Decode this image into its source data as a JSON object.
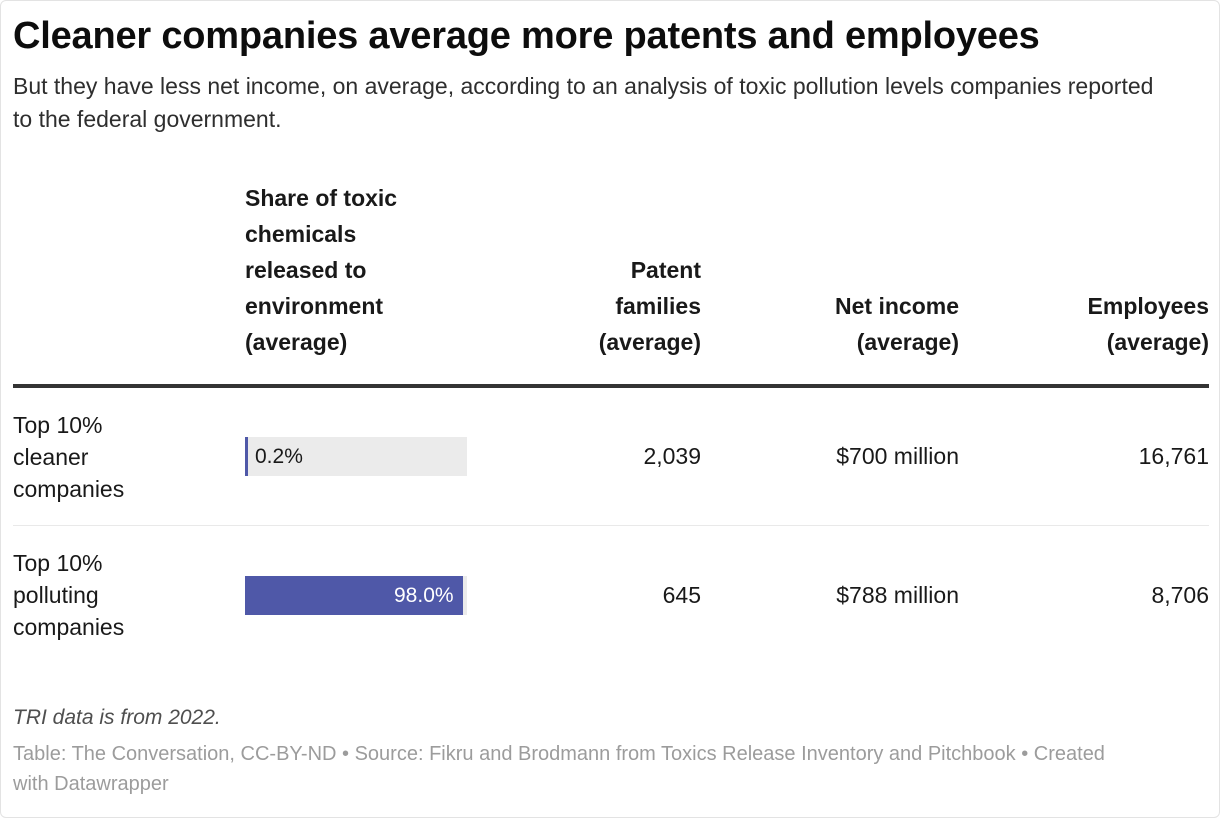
{
  "title": "Cleaner companies average more patents and employees",
  "subtitle": "But they have less net income, on average, according to an analysis of toxic pollution levels companies reported to the federal government.",
  "accent_color": "#4f58a8",
  "track_color": "#ebebeb",
  "table": {
    "columns": [
      {
        "label_lines": [
          "Share of toxic",
          "chemicals",
          "released to",
          "environment",
          "(average)"
        ],
        "align": "left"
      },
      {
        "label_lines": [
          "Patent",
          "families",
          "(average)"
        ],
        "align": "right"
      },
      {
        "label_lines": [
          "Net income",
          "(average)"
        ],
        "align": "right"
      },
      {
        "label_lines": [
          "Employees",
          "(average)"
        ],
        "align": "right"
      }
    ],
    "rows": [
      {
        "label_lines": [
          "Top 10%",
          "cleaner",
          "companies"
        ],
        "share_pct": 0.2,
        "share_label": "0.2%",
        "patents": "2,039",
        "net_income": "$700 million",
        "employees": "16,761"
      },
      {
        "label_lines": [
          "Top 10%",
          "polluting",
          "companies"
        ],
        "share_pct": 98.0,
        "share_label": "98.0%",
        "patents": "645",
        "net_income": "$788 million",
        "employees": "8,706"
      }
    ]
  },
  "footnote": "TRI data is from 2022.",
  "attribution_lines": [
    "Table: The Conversation, CC-BY-ND • Source: Fikru and Brodmann from Toxics Release Inventory and Pitchbook • Created",
    "with Datawrapper"
  ],
  "chart_data": {
    "type": "table",
    "title": "Cleaner companies average more patents and employees",
    "subtitle": "But they have less net income, on average, according to an analysis of toxic pollution levels companies reported to the federal government.",
    "columns": [
      "Share of toxic chemicals released to environment (average)",
      "Patent families (average)",
      "Net income (average)",
      "Employees (average)"
    ],
    "rows": [
      {
        "group": "Top 10% cleaner companies",
        "share_of_toxic_chemicals_released_pct": 0.2,
        "patent_families": 2039,
        "net_income_usd_millions": 700,
        "employees": 16761
      },
      {
        "group": "Top 10% polluting companies",
        "share_of_toxic_chemicals_released_pct": 98.0,
        "patent_families": 645,
        "net_income_usd_millions": 788,
        "employees": 8706
      }
    ],
    "embedded_bar": {
      "column": "Share of toxic chemicals released to environment (average)",
      "axis_range": [
        0,
        100
      ],
      "bar_color": "#4f58a8",
      "track_color": "#ebebeb"
    },
    "footnote": "TRI data is from 2022.",
    "attribution": "Table: The Conversation, CC-BY-ND • Source: Fikru and Brodmann from Toxics Release Inventory and Pitchbook • Created with Datawrapper"
  }
}
